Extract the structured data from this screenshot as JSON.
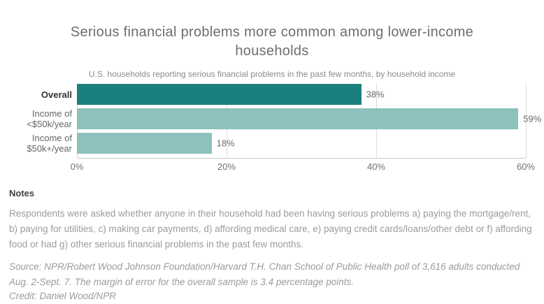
{
  "chart_data": {
    "type": "bar",
    "orientation": "horizontal",
    "title": "Serious financial problems more common among lower-income households",
    "subtitle": "U.S. households reporting serious financial problems in the past few months, by household income",
    "categories": [
      "Overall",
      "Income of\n<$50k/year",
      "Income of\n$50k+/year"
    ],
    "values": [
      38,
      59,
      18
    ],
    "value_labels": [
      "38%",
      "59%",
      "18%"
    ],
    "xlim": [
      0,
      60
    ],
    "x_ticks": [
      0,
      20,
      40,
      60
    ],
    "x_tick_labels": [
      "0%",
      "20%",
      "40%",
      "60%"
    ],
    "grid": true,
    "legend": "none",
    "bold_categories": [
      "Overall"
    ],
    "bar_colors": [
      "#1A807D",
      "#8CC1BC",
      "#8CC1BC"
    ]
  },
  "notes": {
    "heading": "Notes",
    "body": "Respondents were asked whether anyone in their household had been having serious problems a) paying the mortgage/rent, b) paying for utilities, c) making car payments, d) affording medical care, e) paying credit cards/loans/other debt or f) affording food or had g) other serious financial problems in the past few months."
  },
  "footer": {
    "source": "Source: NPR/Robert Wood Johnson Foundation/Harvard T.H. Chan School of Public Health poll of 3,616 adults conducted Aug. 2-Sept. 7. The margin of error for the overall sample is 3.4 percentage points.",
    "credit": "Credit: Daniel Wood/NPR"
  },
  "colors": {
    "accent_dark": "#1A807D",
    "accent_light": "#8CC1BC",
    "grid": "#DCDCDC",
    "axis": "#C9C9C9"
  }
}
